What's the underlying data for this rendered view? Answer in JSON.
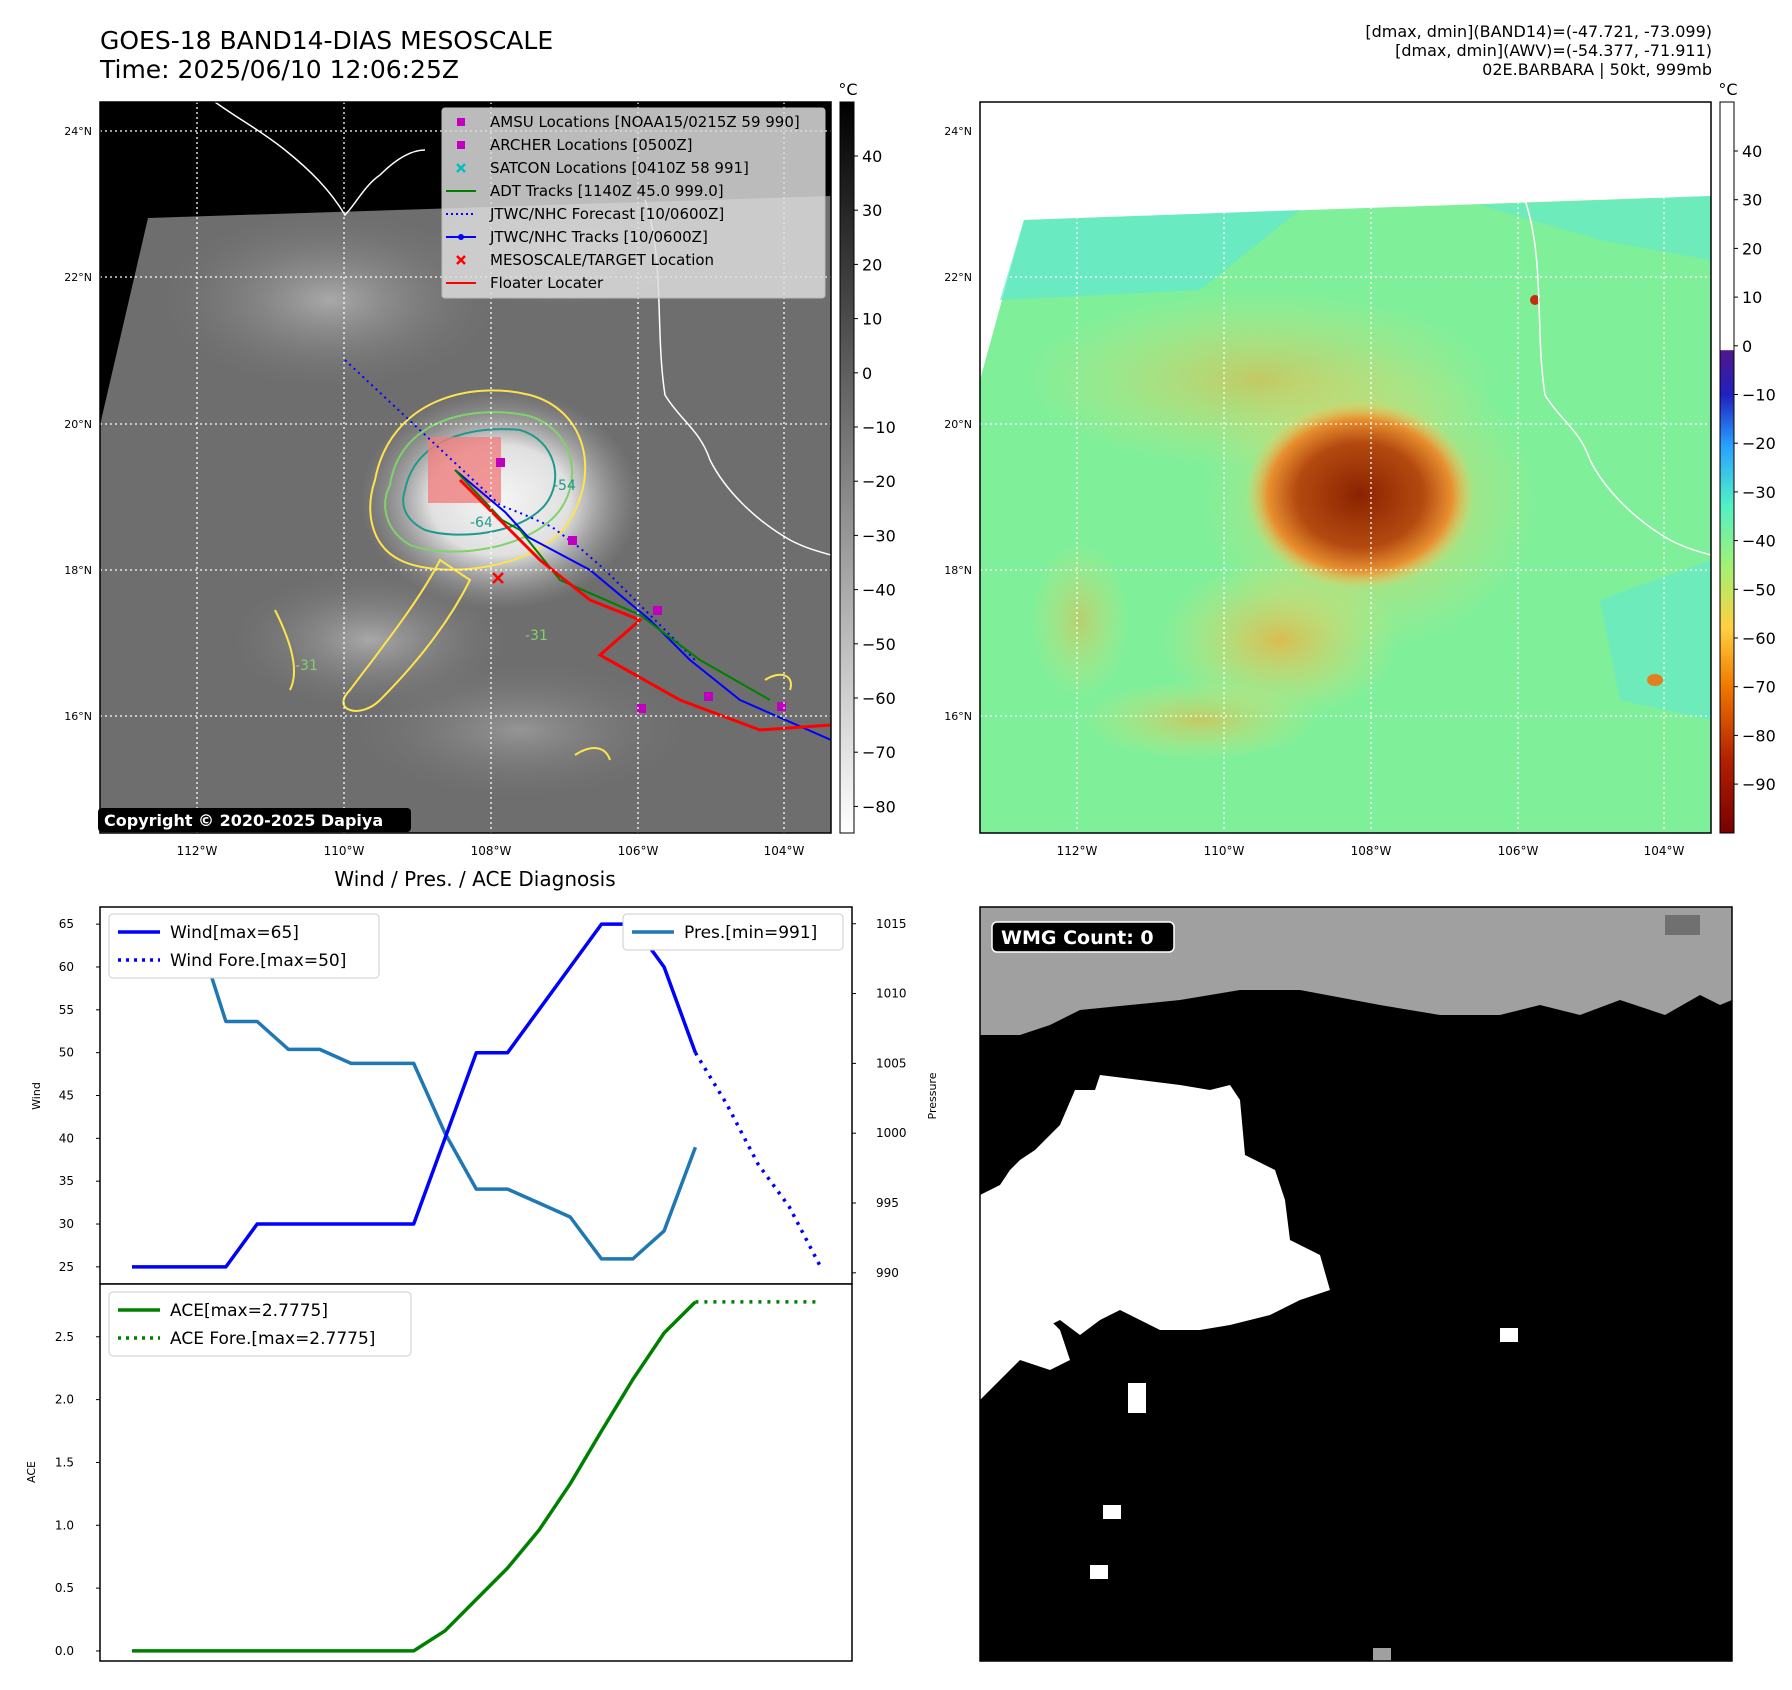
{
  "header": {
    "title_line1": "GOES-18 BAND14-DIAS MESOSCALE",
    "title_line2": "Time: 2025/06/10 12:06:25Z",
    "info_line1": "[dmax, dmin](BAND14)=(-47.721, -73.099)",
    "info_line2": "[dmax, dmin](AWV)=(-54.377, -71.911)",
    "info_line3": "02E.BARBARA | 50kt, 999mb"
  },
  "map": {
    "lat_ticks": [
      "24°N",
      "22°N",
      "20°N",
      "18°N",
      "16°N"
    ],
    "lon_ticks": [
      "112°W",
      "110°W",
      "108°W",
      "106°W",
      "104°W"
    ],
    "copyright": "Copyright © 2020-2025 Dapiya",
    "contour_labels": [
      "-54",
      "-64",
      "-31",
      "-31"
    ],
    "legend": [
      {
        "label": "AMSU Locations [NOAA15/0215Z 59 990]",
        "symbol": "square",
        "color": "#bf00bf"
      },
      {
        "label": "ARCHER Locations [0500Z]",
        "symbol": "square",
        "color": "#bf00bf"
      },
      {
        "label": "SATCON Locations [0410Z 58 991]",
        "symbol": "x",
        "color": "#00bfbf"
      },
      {
        "label": "ADT Tracks [1140Z 45.0 999.0]",
        "symbol": "line",
        "color": "#008000"
      },
      {
        "label": "JTWC/NHC Forecast [10/0600Z]",
        "symbol": "dotted",
        "color": "#0000ff"
      },
      {
        "label": "JTWC/NHC Tracks [10/0600Z]",
        "symbol": "line-dot",
        "color": "#0000ff"
      },
      {
        "label": "MESOSCALE/TARGET Location",
        "symbol": "x",
        "color": "#ff0000"
      },
      {
        "label": "Floater Locater",
        "symbol": "line",
        "color": "#ff0000"
      }
    ],
    "colorbar_ir": {
      "unit": "°C",
      "ticks": [
        "40",
        "30",
        "20",
        "10",
        "0",
        "−10",
        "−20",
        "−30",
        "−40",
        "−50",
        "−60",
        "−70",
        "−80"
      ]
    },
    "colorbar_color": {
      "unit": "°C",
      "ticks": [
        "40",
        "30",
        "20",
        "10",
        "0",
        "−10",
        "−20",
        "−30",
        "−40",
        "−50",
        "−60",
        "−70",
        "−80",
        "−90"
      ]
    },
    "colors": {
      "coast": "#ffffff",
      "contour_yellow": "#ffe34d",
      "contour_green": "#7fd36b",
      "contour_teal": "#1f9a8a"
    }
  },
  "chart_data": [
    {
      "type": "line",
      "title": "Wind / Pres. / ACE Diagnosis",
      "ylabel": "Wind",
      "ylim": [
        23,
        67
      ],
      "y_ticks": [
        "65",
        "60",
        "55",
        "50",
        "45",
        "40",
        "35",
        "30",
        "25"
      ],
      "x": [
        0,
        1,
        2,
        3,
        4,
        5,
        6,
        7,
        8,
        9,
        10,
        11,
        12,
        13,
        14,
        15,
        16,
        17,
        18,
        19,
        20,
        21,
        22
      ],
      "series": [
        {
          "name": "Wind[max=65]",
          "color": "#0000ff",
          "style": "solid",
          "x": [
            0,
            1,
            2,
            3,
            4,
            5,
            6,
            7,
            8,
            9,
            10,
            11,
            12,
            13,
            14,
            15,
            16,
            17,
            18
          ],
          "values": [
            25,
            25,
            25,
            25,
            30,
            30,
            30,
            30,
            30,
            30,
            40,
            50,
            50,
            55,
            60,
            65,
            65,
            60,
            50
          ]
        },
        {
          "name": "Wind Fore.[max=50]",
          "color": "#0000ff",
          "style": "dotted",
          "x": [
            18,
            19,
            20,
            21,
            22
          ],
          "values": [
            50,
            44,
            37,
            32,
            25
          ]
        }
      ]
    },
    {
      "type": "line",
      "ylabel": "Pressure",
      "ylim": [
        989.2,
        1016.2
      ],
      "y_ticks": [
        "1015",
        "1010",
        "1005",
        "1000",
        "995",
        "990"
      ],
      "series": [
        {
          "name": "Pres.[min=991]",
          "color": "#1f77b4",
          "style": "solid",
          "x": [
            0,
            1,
            2,
            3,
            4,
            5,
            6,
            7,
            8,
            9,
            10,
            11,
            12,
            13,
            14,
            15,
            16,
            17,
            18
          ],
          "values": [
            1015,
            1015,
            1015,
            1008,
            1008,
            1006,
            1006,
            1005,
            1005,
            1005,
            1000,
            996,
            996,
            995,
            994,
            991,
            991,
            993,
            999
          ]
        }
      ]
    },
    {
      "type": "line",
      "ylabel": "ACE",
      "ylim": [
        -0.08,
        2.92
      ],
      "y_ticks": [
        "2.5",
        "2.0",
        "1.5",
        "1.0",
        "0.5",
        "0.0"
      ],
      "series": [
        {
          "name": "ACE[max=2.7775]",
          "color": "#008000",
          "style": "solid",
          "x": [
            0,
            1,
            2,
            3,
            4,
            5,
            6,
            7,
            8,
            9,
            10,
            11,
            12,
            13,
            14,
            15,
            16,
            17,
            18
          ],
          "values": [
            0,
            0,
            0,
            0,
            0,
            0,
            0,
            0,
            0,
            0,
            0.16,
            0.41,
            0.66,
            0.96,
            1.33,
            1.75,
            2.16,
            2.53,
            2.7775
          ]
        },
        {
          "name": "ACE Fore.[max=2.7775]",
          "color": "#008000",
          "style": "dotted",
          "x": [
            18,
            22
          ],
          "values": [
            2.7775,
            2.7775
          ]
        }
      ]
    }
  ],
  "wmg": {
    "label": "WMG Count: 0"
  }
}
